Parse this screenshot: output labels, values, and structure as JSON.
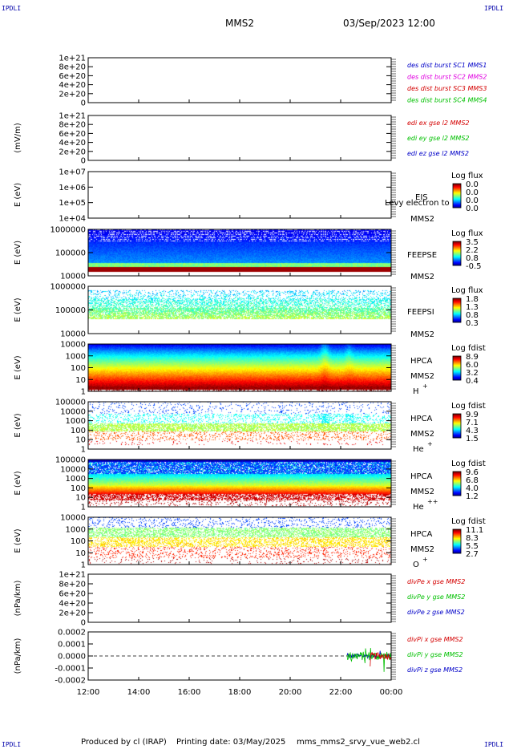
{
  "corner_labels": {
    "top_left": "IPDLI",
    "top_right": "IPDLI",
    "bottom_left": "IPDLI",
    "bottom_right": "IPDLI"
  },
  "header": {
    "spacecraft": "MMS2",
    "datetime": "03/Sep/2023 12:00"
  },
  "footer": {
    "produced_by": "Produced by cl (IRAP)",
    "printing_date": "Printing date: 03/May/2025",
    "script_name": "mms_mms2_srvy_vue_web2.cl"
  },
  "colors": {
    "red": "#d40000",
    "magenta": "#e000e0",
    "green": "#00c000",
    "blue": "#0000c8",
    "dashed": "#000000"
  },
  "chart_data": [
    {
      "type": "line",
      "panel": "des-dist",
      "y_ticks": [
        "1e+21",
        "8e+20",
        "6e+20",
        "4e+20",
        "2e+20",
        "0"
      ],
      "ylim": [
        0,
        1e+21
      ],
      "legend": [
        {
          "text": "des dist burst SC1 MMS1",
          "color": "#0000c8"
        },
        {
          "text": "des dist burst SC2 MMS2",
          "color": "#e000e0"
        },
        {
          "text": "des dist burst SC3 MMS3",
          "color": "#d40000"
        },
        {
          "text": "des dist burst SC4 MMS4",
          "color": "#00c000"
        }
      ],
      "series": []
    },
    {
      "type": "line",
      "panel": "edi",
      "ylabel": "(mV/m)",
      "y_ticks": [
        "1e+21",
        "8e+20",
        "6e+20",
        "4e+20",
        "2e+20",
        "0"
      ],
      "ylim": [
        0,
        1e+21
      ],
      "legend": [
        {
          "text": "edi ex gse l2 MMS2",
          "color": "#d40000"
        },
        {
          "text": "edi ey gse l2 MMS2",
          "color": "#00c000"
        },
        {
          "text": "edi ez gse l2 MMS2",
          "color": "#0000c8"
        }
      ],
      "series": []
    },
    {
      "type": "heatmap",
      "panel": "EIS",
      "ylabel": "E (eV)",
      "scale": "log",
      "y_ticks": [
        "1e+07",
        "1e+06",
        "1e+05",
        "1e+04"
      ],
      "ylim": [
        10000,
        10000000
      ],
      "labels": [
        "EIS",
        "MMS2"
      ],
      "overlay_text": "Levy electron to",
      "cbar_title": "Log flux",
      "cbar_ticks": [
        "0.0",
        "0.0",
        "0.0",
        "0.0"
      ]
    },
    {
      "type": "heatmap",
      "panel": "FEEPSE",
      "ylabel": "E (eV)",
      "scale": "log",
      "y_ticks": [
        "1000000",
        "100000",
        "10000"
      ],
      "ylim": [
        10000,
        1000000
      ],
      "labels": [
        "FEEPSE",
        "MMS2"
      ],
      "cbar_title": "Log flux",
      "cbar_ticks": [
        "3.5",
        "2.2",
        "0.8",
        "-0.5"
      ]
    },
    {
      "type": "heatmap",
      "panel": "FEEPSI",
      "ylabel": "E (eV)",
      "scale": "log",
      "y_ticks": [
        "1000000",
        "100000",
        "10000"
      ],
      "ylim": [
        10000,
        1000000
      ],
      "labels": [
        "FEEPSI",
        "MMS2"
      ],
      "cbar_title": "Log flux",
      "cbar_ticks": [
        "1.8",
        "1.3",
        "0.8",
        "0.3"
      ]
    },
    {
      "type": "heatmap",
      "panel": "HPCA-H",
      "ylabel": "E (eV)",
      "scale": "log",
      "y_ticks": [
        "10000",
        "1000",
        "100",
        "10",
        "1"
      ],
      "ylim": [
        1,
        30000
      ],
      "labels": [
        "HPCA",
        "MMS2",
        "H",
        "+"
      ],
      "cbar_title": "Log fdist",
      "cbar_ticks": [
        "8.9",
        "6.0",
        "3.2",
        "0.4"
      ]
    },
    {
      "type": "heatmap",
      "panel": "HPCA-He+",
      "ylabel": "E (eV)",
      "scale": "log",
      "y_ticks": [
        "100000",
        "10000",
        "1000",
        "100",
        "10",
        "1"
      ],
      "ylim": [
        1,
        100000
      ],
      "labels": [
        "HPCA",
        "MMS2",
        "He",
        "+"
      ],
      "cbar_title": "Log fdist",
      "cbar_ticks": [
        "9.9",
        "7.1",
        "4.3",
        "1.5"
      ]
    },
    {
      "type": "heatmap",
      "panel": "HPCA-He++",
      "ylabel": "E (eV)",
      "scale": "log",
      "y_ticks": [
        "100000",
        "10000",
        "1000",
        "100",
        "10",
        "1"
      ],
      "ylim": [
        1,
        100000
      ],
      "labels": [
        "HPCA",
        "MMS2",
        "He",
        "++"
      ],
      "cbar_title": "Log fdist",
      "cbar_ticks": [
        "9.6",
        "6.8",
        "4.0",
        "1.2"
      ]
    },
    {
      "type": "heatmap",
      "panel": "HPCA-O+",
      "ylabel": "E (eV)",
      "scale": "log",
      "y_ticks": [
        "10000",
        "1000",
        "100",
        "10",
        "1"
      ],
      "ylim": [
        1,
        30000
      ],
      "labels": [
        "HPCA",
        "MMS2",
        "O",
        "+"
      ],
      "cbar_title": "Log fdist",
      "cbar_ticks": [
        "11.1",
        "8.3",
        "5.5",
        "2.7"
      ]
    },
    {
      "type": "line",
      "panel": "divPe",
      "ylabel": "(nPa/km)",
      "y_ticks": [
        "1e+21",
        "8e+20",
        "6e+20",
        "4e+20",
        "2e+20",
        "0"
      ],
      "ylim": [
        0,
        1e+21
      ],
      "legend": [
        {
          "text": "divPe x gse MMS2",
          "color": "#d40000"
        },
        {
          "text": "divPe y gse MMS2",
          "color": "#00c000"
        },
        {
          "text": "divPe z gse MMS2",
          "color": "#0000c8"
        }
      ],
      "series": []
    },
    {
      "type": "line",
      "panel": "divPi",
      "ylabel": "(nPa/km)",
      "y_ticks": [
        "0.0002",
        "0.0001",
        "0.0000",
        "-0.0001",
        "-0.0002"
      ],
      "ylim": [
        -0.00022,
        0.00022
      ],
      "legend": [
        {
          "text": "divPi x gse MMS2",
          "color": "#d40000"
        },
        {
          "text": "divPi y gse MMS2",
          "color": "#00c000"
        },
        {
          "text": "divPi z gse MMS2",
          "color": "#0000c8"
        }
      ],
      "series": [
        {
          "color": "#0000c8",
          "t_start": "22:15",
          "t_end": "24:00",
          "amplitude": 2e-05
        },
        {
          "color": "#00c000",
          "t_start": "22:15",
          "t_end": "24:00",
          "amplitude": 4e-05
        },
        {
          "color": "#d40000",
          "t_start": "23:10",
          "t_end": "24:00",
          "amplitude": 3e-05
        }
      ]
    }
  ],
  "x_axis": {
    "ticks": [
      "12:00",
      "14:00",
      "16:00",
      "18:00",
      "20:00",
      "22:00",
      "00:00"
    ]
  }
}
